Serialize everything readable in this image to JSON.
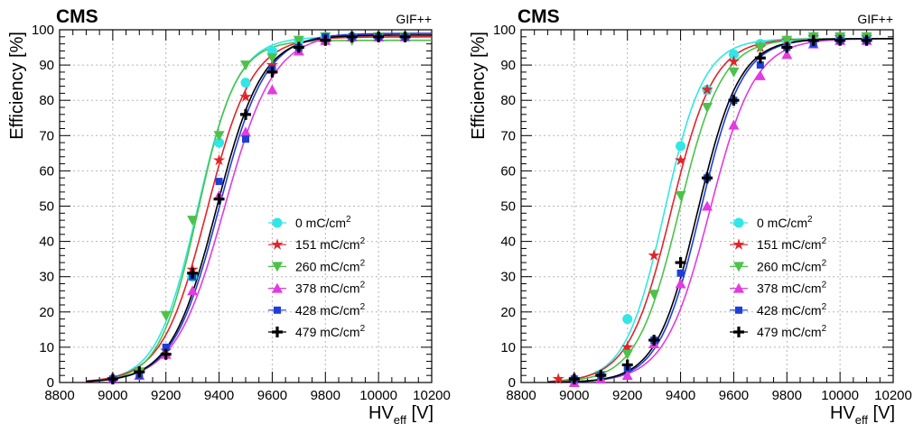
{
  "colors": {
    "0": "#33e6e6",
    "151": "#e0242a",
    "260": "#4cc24a",
    "378": "#e23be0",
    "428": "#1f3ed8",
    "479": "#000000"
  },
  "chart_data": [
    {
      "type": "scatter",
      "experiment": "CMS",
      "facility": "GIF++",
      "xlabel_main": "HV",
      "xlabel_sub": "eff",
      "xlabel_unit": "[V]",
      "ylabel": "Efficiency [%]",
      "xlim": [
        8800,
        10200
      ],
      "ylim": [
        0,
        100
      ],
      "x_ticks": [
        "8800",
        "9000",
        "9200",
        "9400",
        "9600",
        "9800",
        "10000",
        "10200"
      ],
      "y_ticks": [
        "0",
        "10",
        "20",
        "30",
        "40",
        "50",
        "60",
        "70",
        "80",
        "90",
        "100"
      ],
      "grid": true,
      "legend_position": "center-right",
      "fit_curves": true,
      "series": [
        {
          "name": "0 mC/cm",
          "sup": "2",
          "key": "0",
          "marker": "circle",
          "fit": {
            "emax": 98,
            "hv50": 9318,
            "lambda": 0.0131
          },
          "points": [
            [
              9300,
              30
            ],
            [
              9400,
              68
            ],
            [
              9500,
              85
            ],
            [
              9600,
              94
            ],
            [
              9700,
              97
            ],
            [
              9800,
              98
            ],
            [
              9900,
              98
            ],
            [
              10000,
              98
            ],
            [
              10100,
              98
            ]
          ]
        },
        {
          "name": "151 mC/cm",
          "sup": "2",
          "key": "151",
          "marker": "star",
          "fit": {
            "emax": 98,
            "hv50": 9355,
            "lambda": 0.0118
          },
          "points": [
            [
              9000,
              1
            ],
            [
              9100,
              3
            ],
            [
              9200,
              9
            ],
            [
              9300,
              32
            ],
            [
              9400,
              63
            ],
            [
              9500,
              81
            ],
            [
              9600,
              90
            ],
            [
              9700,
              95
            ],
            [
              9800,
              97
            ],
            [
              9900,
              98
            ],
            [
              10000,
              98
            ],
            [
              10100,
              98
            ]
          ]
        },
        {
          "name": "260 mC/cm",
          "sup": "2",
          "key": "260",
          "marker": "triangle-down",
          "fit": {
            "emax": 97,
            "hv50": 9320,
            "lambda": 0.0138
          },
          "points": [
            [
              9100,
              3
            ],
            [
              9200,
              19
            ],
            [
              9300,
              46
            ],
            [
              9400,
              70
            ],
            [
              9500,
              90
            ],
            [
              9600,
              92
            ],
            [
              9700,
              97
            ],
            [
              9800,
              98
            ],
            [
              9900,
              97
            ],
            [
              10000,
              98
            ],
            [
              10100,
              98
            ]
          ]
        },
        {
          "name": "378 mC/cm",
          "sup": "2",
          "key": "378",
          "marker": "triangle-up",
          "fit": {
            "emax": 99,
            "hv50": 9420,
            "lambda": 0.0108
          },
          "points": [
            [
              9000,
              1
            ],
            [
              9100,
              2
            ],
            [
              9200,
              8
            ],
            [
              9300,
              26
            ],
            [
              9400,
              53
            ],
            [
              9500,
              71
            ],
            [
              9600,
              83
            ],
            [
              9700,
              94
            ],
            [
              9800,
              97
            ],
            [
              9900,
              98
            ],
            [
              10000,
              98
            ],
            [
              10100,
              98
            ]
          ]
        },
        {
          "name": "428 mC/cm",
          "sup": "2",
          "key": "428",
          "marker": "square",
          "fit": {
            "emax": 99,
            "hv50": 9400,
            "lambda": 0.0115
          },
          "points": [
            [
              9000,
              1
            ],
            [
              9100,
              2
            ],
            [
              9200,
              10
            ],
            [
              9300,
              30
            ],
            [
              9400,
              57
            ],
            [
              9500,
              69
            ],
            [
              9600,
              89
            ],
            [
              9700,
              95
            ],
            [
              9800,
              98
            ],
            [
              9900,
              98
            ],
            [
              10000,
              98
            ],
            [
              10100,
              98
            ]
          ]
        },
        {
          "name": "479 mC/cm",
          "sup": "2",
          "key": "479",
          "marker": "cross",
          "fit": {
            "emax": 98.5,
            "hv50": 9390,
            "lambda": 0.0117
          },
          "points": [
            [
              9000,
              1
            ],
            [
              9100,
              3
            ],
            [
              9200,
              8
            ],
            [
              9300,
              31
            ],
            [
              9400,
              52
            ],
            [
              9500,
              76
            ],
            [
              9600,
              88
            ],
            [
              9700,
              95
            ],
            [
              9800,
              97
            ],
            [
              9900,
              98
            ],
            [
              10000,
              98
            ],
            [
              10100,
              98
            ]
          ]
        }
      ]
    },
    {
      "type": "scatter",
      "experiment": "CMS",
      "facility": "GIF++",
      "xlabel_main": "HV",
      "xlabel_sub": "eff",
      "xlabel_unit": "[V]",
      "ylabel": "Efficiency [%]",
      "xlim": [
        8800,
        10200
      ],
      "ylim": [
        0,
        100
      ],
      "x_ticks": [
        "8800",
        "9000",
        "9200",
        "9400",
        "9600",
        "9800",
        "10000",
        "10200"
      ],
      "y_ticks": [
        "0",
        "10",
        "20",
        "30",
        "40",
        "50",
        "60",
        "70",
        "80",
        "90",
        "100"
      ],
      "grid": true,
      "legend_position": "center-right",
      "fit_curves": true,
      "series": [
        {
          "name": "0 mC/cm",
          "sup": "2",
          "key": "0",
          "marker": "circle",
          "fit": {
            "emax": 97.5,
            "hv50": 9340,
            "lambda": 0.0135
          },
          "points": [
            [
              9200,
              18
            ],
            [
              9400,
              67
            ],
            [
              9500,
              83
            ],
            [
              9600,
              93
            ],
            [
              9700,
              96
            ],
            [
              9800,
              97
            ],
            [
              9900,
              98
            ],
            [
              10000,
              98
            ],
            [
              10100,
              98
            ]
          ]
        },
        {
          "name": "151 mC/cm",
          "sup": "2",
          "key": "151",
          "marker": "star",
          "fit": {
            "emax": 97.5,
            "hv50": 9365,
            "lambda": 0.0125
          },
          "points": [
            [
              8940,
              1
            ],
            [
              9000,
              1
            ],
            [
              9100,
              2
            ],
            [
              9200,
              10
            ],
            [
              9300,
              36
            ],
            [
              9400,
              63
            ],
            [
              9500,
              83
            ],
            [
              9600,
              91
            ],
            [
              9700,
              95
            ],
            [
              9800,
              97
            ],
            [
              9900,
              98
            ],
            [
              10000,
              98
            ],
            [
              10100,
              98
            ]
          ]
        },
        {
          "name": "260 mC/cm",
          "sup": "2",
          "key": "260",
          "marker": "triangle-down",
          "fit": {
            "emax": 97.5,
            "hv50": 9395,
            "lambda": 0.0125
          },
          "points": [
            [
              9100,
              2
            ],
            [
              9200,
              8
            ],
            [
              9300,
              25
            ],
            [
              9400,
              53
            ],
            [
              9500,
              78
            ],
            [
              9600,
              88
            ],
            [
              9700,
              95
            ],
            [
              9800,
              97
            ],
            [
              9900,
              98
            ],
            [
              10000,
              98
            ],
            [
              10100,
              98
            ]
          ]
        },
        {
          "name": "378 mC/cm",
          "sup": "2",
          "key": "378",
          "marker": "triangle-up",
          "fit": {
            "emax": 97.5,
            "hv50": 9510,
            "lambda": 0.0118
          },
          "points": [
            [
              9000,
              0
            ],
            [
              9100,
              1
            ],
            [
              9200,
              2
            ],
            [
              9300,
              11
            ],
            [
              9400,
              28
            ],
            [
              9500,
              50
            ],
            [
              9600,
              73
            ],
            [
              9700,
              87
            ],
            [
              9800,
              93
            ],
            [
              9900,
              96
            ],
            [
              10000,
              97
            ],
            [
              10100,
              97
            ]
          ]
        },
        {
          "name": "428 mC/cm",
          "sup": "2",
          "key": "428",
          "marker": "square",
          "fit": {
            "emax": 97.5,
            "hv50": 9475,
            "lambda": 0.0128
          },
          "points": [
            [
              9000,
              1
            ],
            [
              9100,
              2
            ],
            [
              9200,
              4
            ],
            [
              9300,
              12
            ],
            [
              9400,
              31
            ],
            [
              9500,
              58
            ],
            [
              9600,
              80
            ],
            [
              9700,
              90
            ],
            [
              9800,
              95
            ],
            [
              9900,
              96
            ],
            [
              10000,
              97
            ],
            [
              10100,
              97
            ]
          ]
        },
        {
          "name": "479 mC/cm",
          "sup": "2",
          "key": "479",
          "marker": "cross",
          "fit": {
            "emax": 97.5,
            "hv50": 9465,
            "lambda": 0.0128
          },
          "points": [
            [
              9000,
              1
            ],
            [
              9100,
              2
            ],
            [
              9200,
              5
            ],
            [
              9300,
              12
            ],
            [
              9400,
              34
            ],
            [
              9500,
              58
            ],
            [
              9600,
              80
            ],
            [
              9700,
              92
            ],
            [
              9800,
              95
            ],
            [
              9900,
              97
            ],
            [
              10000,
              97
            ],
            [
              10100,
              97
            ]
          ]
        }
      ]
    }
  ]
}
